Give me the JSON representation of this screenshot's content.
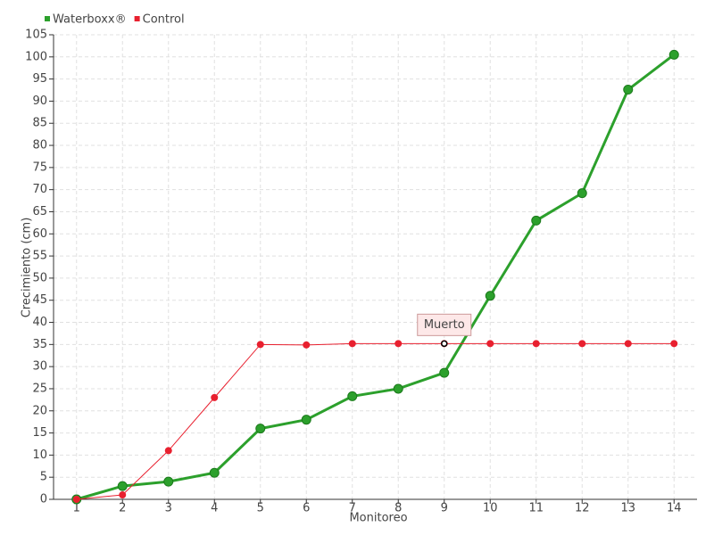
{
  "chart_data": {
    "type": "line",
    "x_label": "Monitoreo",
    "y_label": "Crecimiento (cm)",
    "x": [
      1,
      2,
      3,
      4,
      5,
      6,
      7,
      8,
      9,
      10,
      11,
      12,
      13,
      14
    ],
    "series": [
      {
        "name": "Waterboxx®",
        "color": "#2ca02c",
        "values": [
          0,
          3,
          4,
          6,
          16,
          18,
          23.3,
          25,
          28.6,
          46,
          63,
          69.2,
          92.6,
          100.5
        ]
      },
      {
        "name": "Control",
        "color": "#e8202f",
        "values": [
          0,
          1,
          11,
          23,
          35,
          34.9,
          35.2,
          35.2,
          35.2,
          35.2,
          35.2,
          35.2,
          35.2,
          35.2
        ]
      }
    ],
    "annotations": [
      {
        "text": "Muerto",
        "x": 9,
        "y": 35.2
      }
    ],
    "xlim": [
      0.5,
      14.5
    ],
    "ylim": [
      0,
      105
    ],
    "xticks": [
      1,
      2,
      3,
      4,
      5,
      6,
      7,
      8,
      9,
      10,
      11,
      12,
      13,
      14
    ],
    "yticks": [
      0,
      5,
      10,
      15,
      20,
      25,
      30,
      35,
      40,
      45,
      50,
      55,
      60,
      65,
      70,
      75,
      80,
      85,
      90,
      95,
      100,
      105
    ],
    "grid": true,
    "legend": "top-left"
  }
}
